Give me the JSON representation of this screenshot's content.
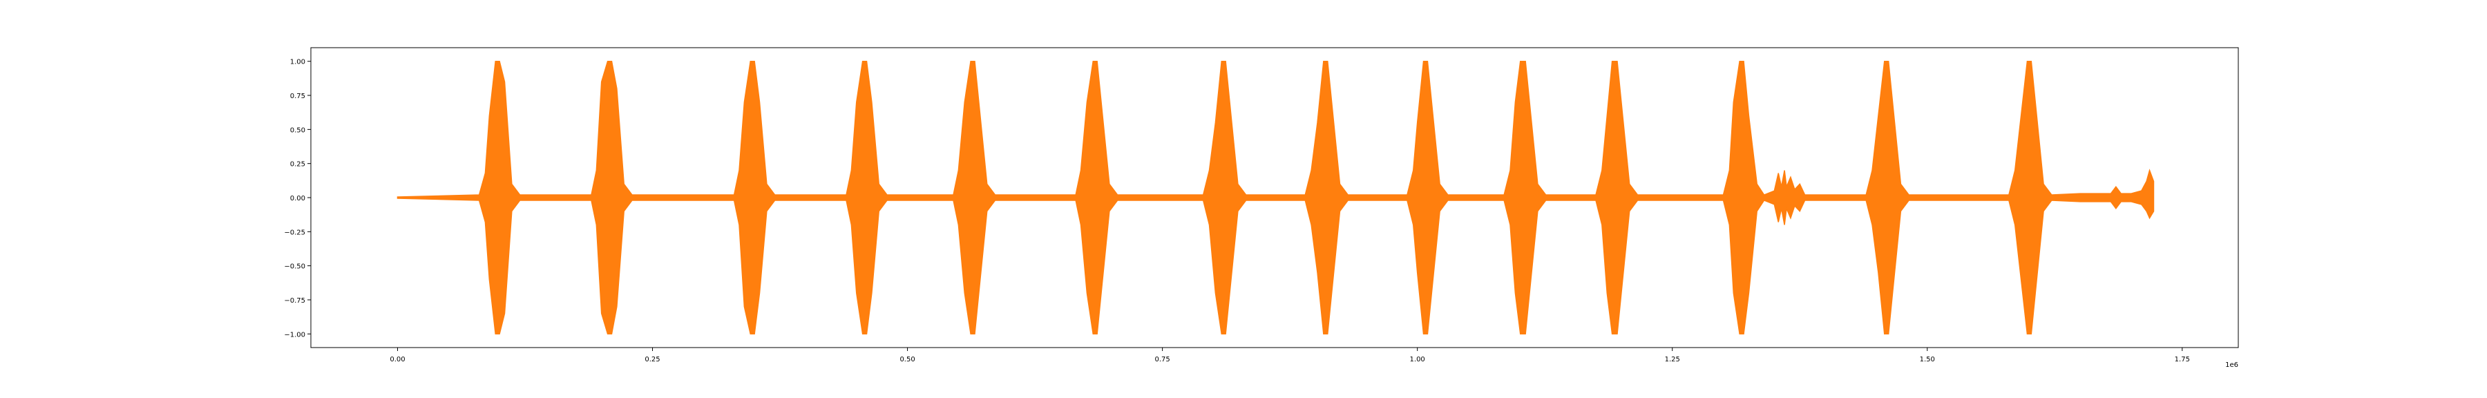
{
  "chart_data": {
    "type": "line",
    "title": "",
    "xlabel": "",
    "ylabel": "",
    "x_offset_label": "1e6",
    "xlim": [
      -85000,
      1805000
    ],
    "ylim": [
      -1.1,
      1.1
    ],
    "xticks": [
      0,
      250000,
      500000,
      750000,
      1000000,
      1250000,
      1500000,
      1750000
    ],
    "xtick_labels": [
      "0.00",
      "0.25",
      "0.50",
      "0.75",
      "1.00",
      "1.25",
      "1.50",
      "1.75"
    ],
    "yticks": [
      -1.0,
      -0.75,
      -0.5,
      -0.25,
      0.0,
      0.25,
      0.5,
      0.75,
      1.0
    ],
    "ytick_labels": [
      "−1.00",
      "−0.75",
      "−0.50",
      "−0.25",
      "0.00",
      "0.25",
      "0.50",
      "0.75",
      "1.00"
    ],
    "grid": false,
    "series": [
      {
        "color": "#ff7f0e",
        "x_range": [
          0,
          1722000
        ],
        "envelope": {
          "x": [
            0,
            80000,
            86000,
            90000,
            96000,
            100000,
            105000,
            112000,
            120000,
            190000,
            195000,
            200000,
            206000,
            210000,
            215000,
            222000,
            230000,
            330000,
            335000,
            340000,
            346000,
            350000,
            355000,
            362000,
            370000,
            440000,
            445000,
            450000,
            456000,
            460000,
            465000,
            472000,
            480000,
            545000,
            550000,
            556000,
            562000,
            566000,
            570000,
            578000,
            586000,
            665000,
            670000,
            676000,
            682000,
            686000,
            690000,
            698000,
            706000,
            790000,
            796000,
            802000,
            808000,
            812000,
            816000,
            824000,
            832000,
            890000,
            896000,
            902000,
            908000,
            912000,
            916000,
            924000,
            932000,
            990000,
            996000,
            1000000,
            1006000,
            1010000,
            1014000,
            1022000,
            1030000,
            1085000,
            1091000,
            1096000,
            1101000,
            1106000,
            1110000,
            1118000,
            1126000,
            1175000,
            1181000,
            1186000,
            1191000,
            1196000,
            1200000,
            1208000,
            1216000,
            1300000,
            1306000,
            1310000,
            1316000,
            1320000,
            1325000,
            1333000,
            1340000,
            1350000,
            1354000,
            1357000,
            1360000,
            1362000,
            1366000,
            1370000,
            1375000,
            1380000,
            1440000,
            1446000,
            1452000,
            1458000,
            1462000,
            1466000,
            1474000,
            1482000,
            1580000,
            1586000,
            1592000,
            1598000,
            1602000,
            1606000,
            1614000,
            1622000,
            1650000,
            1680000,
            1685000,
            1690000,
            1700000,
            1710000,
            1715000,
            1718000,
            1722000
          ],
          "upper": [
            0.005,
            0.02,
            0.18,
            0.6,
            1.0,
            1.0,
            0.85,
            0.1,
            0.02,
            0.02,
            0.2,
            0.85,
            1.0,
            1.0,
            0.8,
            0.1,
            0.02,
            0.02,
            0.2,
            0.7,
            1.0,
            1.0,
            0.7,
            0.1,
            0.02,
            0.02,
            0.2,
            0.7,
            1.0,
            1.0,
            0.7,
            0.1,
            0.02,
            0.02,
            0.2,
            0.7,
            1.0,
            1.0,
            0.7,
            0.1,
            0.02,
            0.02,
            0.2,
            0.7,
            1.0,
            1.0,
            0.7,
            0.1,
            0.02,
            0.02,
            0.2,
            0.55,
            1.0,
            1.0,
            0.7,
            0.1,
            0.02,
            0.02,
            0.2,
            0.55,
            1.0,
            1.0,
            0.7,
            0.1,
            0.02,
            0.02,
            0.2,
            0.55,
            1.0,
            1.0,
            0.7,
            0.1,
            0.02,
            0.02,
            0.2,
            0.7,
            1.0,
            1.0,
            0.7,
            0.1,
            0.02,
            0.02,
            0.2,
            0.6,
            1.0,
            1.0,
            0.7,
            0.1,
            0.02,
            0.02,
            0.2,
            0.7,
            1.0,
            1.0,
            0.6,
            0.1,
            0.02,
            0.05,
            0.18,
            0.08,
            0.2,
            0.08,
            0.15,
            0.06,
            0.1,
            0.02,
            0.02,
            0.2,
            0.6,
            1.0,
            1.0,
            0.7,
            0.1,
            0.02,
            0.02,
            0.2,
            0.6,
            1.0,
            1.0,
            0.7,
            0.1,
            0.02,
            0.03,
            0.03,
            0.08,
            0.03,
            0.03,
            0.05,
            0.12,
            0.2,
            0.12
          ],
          "lower": [
            -0.005,
            -0.02,
            -0.18,
            -0.6,
            -1.0,
            -1.0,
            -0.85,
            -0.1,
            -0.02,
            -0.02,
            -0.2,
            -0.85,
            -1.0,
            -1.0,
            -0.8,
            -0.1,
            -0.02,
            -0.02,
            -0.2,
            -0.8,
            -1.0,
            -1.0,
            -0.7,
            -0.1,
            -0.02,
            -0.02,
            -0.2,
            -0.7,
            -1.0,
            -1.0,
            -0.7,
            -0.1,
            -0.02,
            -0.02,
            -0.2,
            -0.7,
            -1.0,
            -1.0,
            -0.7,
            -0.1,
            -0.02,
            -0.02,
            -0.2,
            -0.7,
            -1.0,
            -1.0,
            -0.7,
            -0.1,
            -0.02,
            -0.02,
            -0.2,
            -0.7,
            -1.0,
            -1.0,
            -0.7,
            -0.1,
            -0.02,
            -0.02,
            -0.2,
            -0.55,
            -1.0,
            -1.0,
            -0.7,
            -0.1,
            -0.02,
            -0.02,
            -0.2,
            -0.55,
            -1.0,
            -1.0,
            -0.7,
            -0.1,
            -0.02,
            -0.02,
            -0.2,
            -0.7,
            -1.0,
            -1.0,
            -0.7,
            -0.1,
            -0.02,
            -0.02,
            -0.2,
            -0.7,
            -1.0,
            -1.0,
            -0.7,
            -0.1,
            -0.02,
            -0.02,
            -0.2,
            -0.7,
            -1.0,
            -1.0,
            -0.7,
            -0.1,
            -0.02,
            -0.05,
            -0.18,
            -0.08,
            -0.2,
            -0.08,
            -0.15,
            -0.06,
            -0.1,
            -0.02,
            -0.02,
            -0.2,
            -0.55,
            -1.0,
            -1.0,
            -0.7,
            -0.1,
            -0.02,
            -0.02,
            -0.2,
            -0.6,
            -1.0,
            -1.0,
            -0.7,
            -0.1,
            -0.02,
            -0.03,
            -0.03,
            -0.08,
            -0.03,
            -0.03,
            -0.05,
            -0.1,
            -0.15,
            -0.1
          ]
        }
      }
    ]
  }
}
